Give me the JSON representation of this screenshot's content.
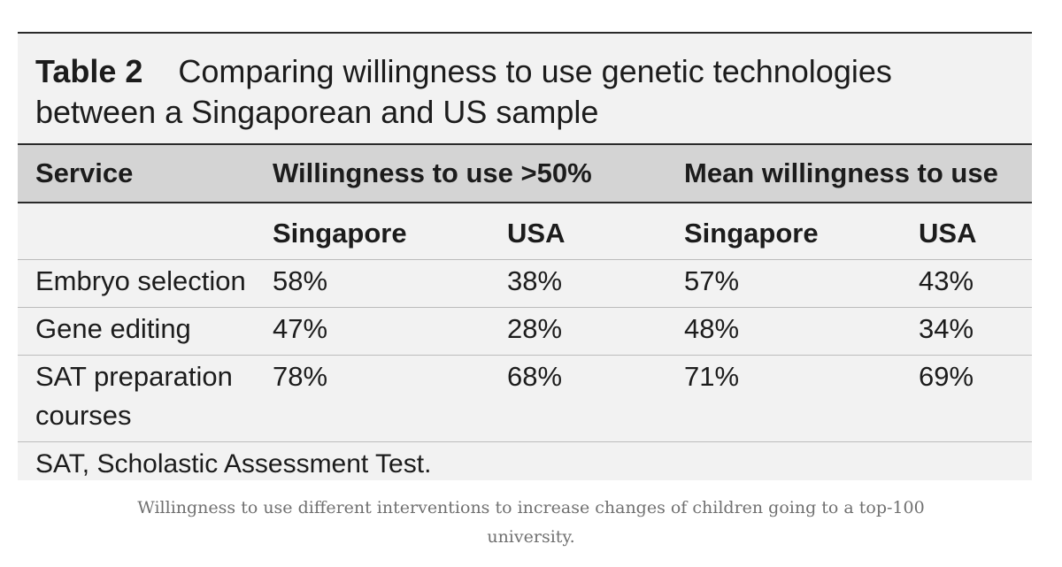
{
  "table": {
    "label": "Table 2",
    "title": "Comparing willingness to use genetic technologies between a Singaporean and US sample",
    "headers": {
      "service": "Service",
      "group1": "Willingness to use >50%",
      "group2": "Mean willingness to use"
    },
    "subheaders": [
      "Singapore",
      "USA",
      "Singapore",
      "USA"
    ],
    "rows": [
      {
        "service": "Embryo selection",
        "values": [
          "58%",
          "38%",
          "57%",
          "43%"
        ]
      },
      {
        "service": "Gene editing",
        "values": [
          "47%",
          "28%",
          "48%",
          "34%"
        ]
      },
      {
        "service_line1": "SAT preparation",
        "service_line2": "courses",
        "values": [
          "78%",
          "68%",
          "71%",
          "69%"
        ]
      }
    ],
    "footnote": "SAT, Scholastic Assessment Test."
  },
  "figure_caption": "Willingness to use different interventions to increase changes of children going to a top-100 university."
}
